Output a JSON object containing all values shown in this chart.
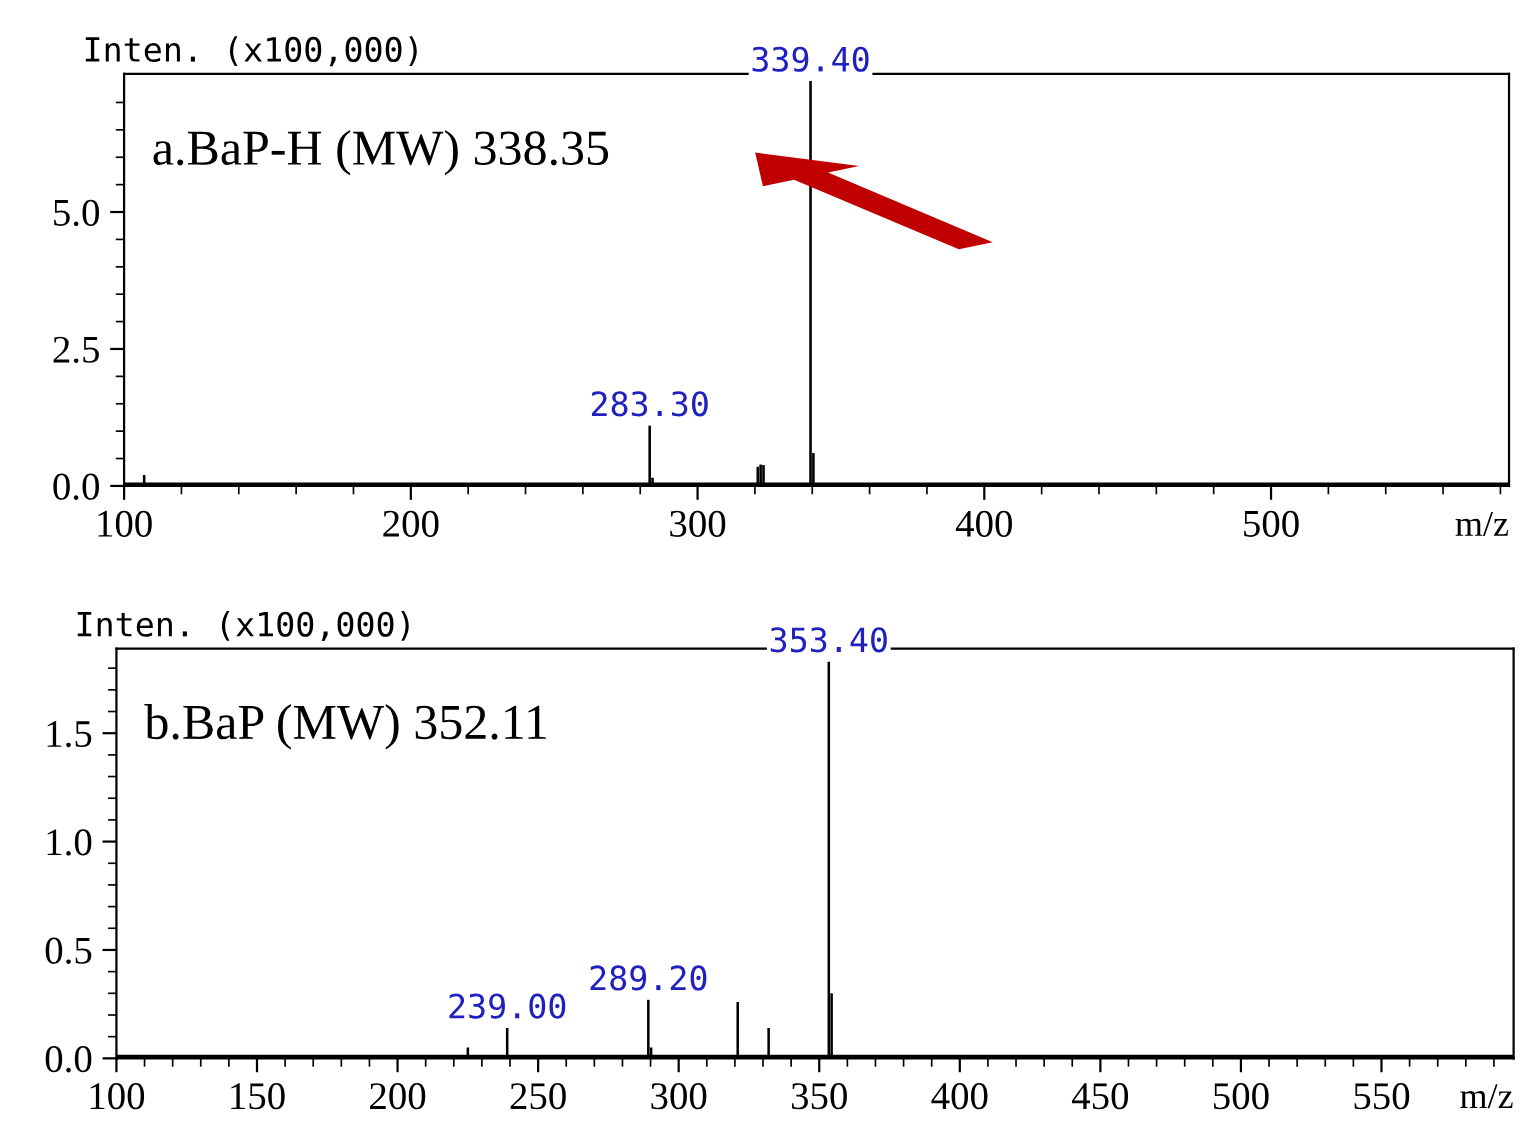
{
  "chart_data": [
    {
      "type": "bar",
      "title": "a.BaP-H (MW) 338.35",
      "ylabel": "Inten. (x100,000)",
      "xlabel": "m/z",
      "color": "#000000",
      "x": [
        107,
        283.3,
        284.3,
        321,
        322,
        323,
        339.4,
        340.4
      ],
      "values": [
        0.2,
        1.1,
        0.15,
        0.35,
        0.39,
        0.38,
        7.39,
        0.6
      ],
      "annotations": [
        {
          "text": "283.30",
          "x": 283.3,
          "y": 1.1
        },
        {
          "text": "339.40",
          "x": 339.4,
          "y": 7.39
        }
      ],
      "xlim": [
        100,
        583
      ],
      "xticks": [
        100,
        {
          "value": 120,
          "label": null
        },
        {
          "value": 140,
          "label": null
        },
        {
          "value": 160,
          "label": null
        },
        {
          "value": 180,
          "label": null
        },
        200,
        {
          "value": 220,
          "label": null
        },
        {
          "value": 240,
          "label": null
        },
        {
          "value": 260,
          "label": null
        },
        {
          "value": 280,
          "label": null
        },
        300,
        {
          "value": 320,
          "label": null
        },
        {
          "value": 340,
          "label": null
        },
        {
          "value": 360,
          "label": null
        },
        {
          "value": 380,
          "label": null
        },
        400,
        {
          "value": 420,
          "label": null
        },
        {
          "value": 440,
          "label": null
        },
        {
          "value": 460,
          "label": null
        },
        {
          "value": 480,
          "label": null
        },
        500,
        {
          "value": 520,
          "label": null
        },
        {
          "value": 540,
          "label": null
        },
        {
          "value": 560,
          "label": null
        },
        {
          "value": 580,
          "label": null
        }
      ],
      "ylim": [
        0,
        7.52
      ],
      "yticks": [
        {
          "value": 0,
          "label": "0.0"
        },
        {
          "value": 0.5,
          "label": null
        },
        {
          "value": 1,
          "label": null
        },
        {
          "value": 1.5,
          "label": null
        },
        {
          "value": 2,
          "label": null
        },
        {
          "value": 2.5,
          "label": "2.5"
        },
        {
          "value": 3,
          "label": null
        },
        {
          "value": 3.5,
          "label": null
        },
        {
          "value": 4,
          "label": null
        },
        {
          "value": 4.5,
          "label": null
        },
        {
          "value": 5,
          "label": "5.0"
        },
        {
          "value": 5.5,
          "label": null
        },
        {
          "value": 6,
          "label": null
        },
        {
          "value": 6.5,
          "label": null
        },
        {
          "value": 7,
          "label": null
        }
      ],
      "grid": false,
      "legend": false
    },
    {
      "type": "bar",
      "title": "b.BaP (MW) 352.11",
      "ylabel": "Inten. (x100,000)",
      "xlabel": "m/z",
      "color": "#000000",
      "x": [
        225,
        239,
        289.2,
        290.2,
        321,
        332,
        353.4,
        354.4
      ],
      "values": [
        0.05,
        0.14,
        0.27,
        0.05,
        0.26,
        0.14,
        1.83,
        0.3
      ],
      "annotations": [
        {
          "text": "239.00",
          "x": 239,
          "y": 0.14
        },
        {
          "text": "289.20",
          "x": 289.2,
          "y": 0.27
        },
        {
          "text": "353.40",
          "x": 353.4,
          "y": 1.83
        }
      ],
      "xlim": [
        100,
        597
      ],
      "xticks": [
        100,
        {
          "value": 110,
          "label": null
        },
        {
          "value": 120,
          "label": null
        },
        {
          "value": 130,
          "label": null
        },
        {
          "value": 140,
          "label": null
        },
        150,
        {
          "value": 160,
          "label": null
        },
        {
          "value": 170,
          "label": null
        },
        {
          "value": 180,
          "label": null
        },
        {
          "value": 190,
          "label": null
        },
        200,
        {
          "value": 210,
          "label": null
        },
        {
          "value": 220,
          "label": null
        },
        {
          "value": 230,
          "label": null
        },
        {
          "value": 240,
          "label": null
        },
        250,
        {
          "value": 260,
          "label": null
        },
        {
          "value": 270,
          "label": null
        },
        {
          "value": 280,
          "label": null
        },
        {
          "value": 290,
          "label": null
        },
        300,
        {
          "value": 310,
          "label": null
        },
        {
          "value": 320,
          "label": null
        },
        {
          "value": 330,
          "label": null
        },
        {
          "value": 340,
          "label": null
        },
        350,
        {
          "value": 360,
          "label": null
        },
        {
          "value": 370,
          "label": null
        },
        {
          "value": 380,
          "label": null
        },
        {
          "value": 390,
          "label": null
        },
        400,
        {
          "value": 410,
          "label": null
        },
        {
          "value": 420,
          "label": null
        },
        {
          "value": 430,
          "label": null
        },
        {
          "value": 440,
          "label": null
        },
        450,
        {
          "value": 460,
          "label": null
        },
        {
          "value": 470,
          "label": null
        },
        {
          "value": 480,
          "label": null
        },
        {
          "value": 490,
          "label": null
        },
        500,
        {
          "value": 510,
          "label": null
        },
        {
          "value": 520,
          "label": null
        },
        {
          "value": 530,
          "label": null
        },
        {
          "value": 540,
          "label": null
        },
        550,
        {
          "value": 560,
          "label": null
        },
        {
          "value": 570,
          "label": null
        },
        {
          "value": 580,
          "label": null
        },
        {
          "value": 590,
          "label": null
        }
      ],
      "ylim": [
        0,
        1.89
      ],
      "yticks": [
        {
          "value": 0,
          "label": "0.0"
        },
        {
          "value": 0.1,
          "label": null
        },
        {
          "value": 0.2,
          "label": null
        },
        {
          "value": 0.3,
          "label": null
        },
        {
          "value": 0.4,
          "label": null
        },
        {
          "value": 0.5,
          "label": "0.5"
        },
        {
          "value": 0.6,
          "label": null
        },
        {
          "value": 0.7,
          "label": null
        },
        {
          "value": 0.8,
          "label": null
        },
        {
          "value": 0.9,
          "label": null
        },
        {
          "value": 1.0,
          "label": "1.0"
        },
        {
          "value": 1.1,
          "label": null
        },
        {
          "value": 1.2,
          "label": null
        },
        {
          "value": 1.3,
          "label": null
        },
        {
          "value": 1.4,
          "label": null
        },
        {
          "value": 1.5,
          "label": "1.5"
        },
        {
          "value": 1.6,
          "label": null
        },
        {
          "value": 1.7,
          "label": null
        },
        {
          "value": 1.8,
          "label": null
        }
      ],
      "grid": false,
      "legend": false
    }
  ]
}
